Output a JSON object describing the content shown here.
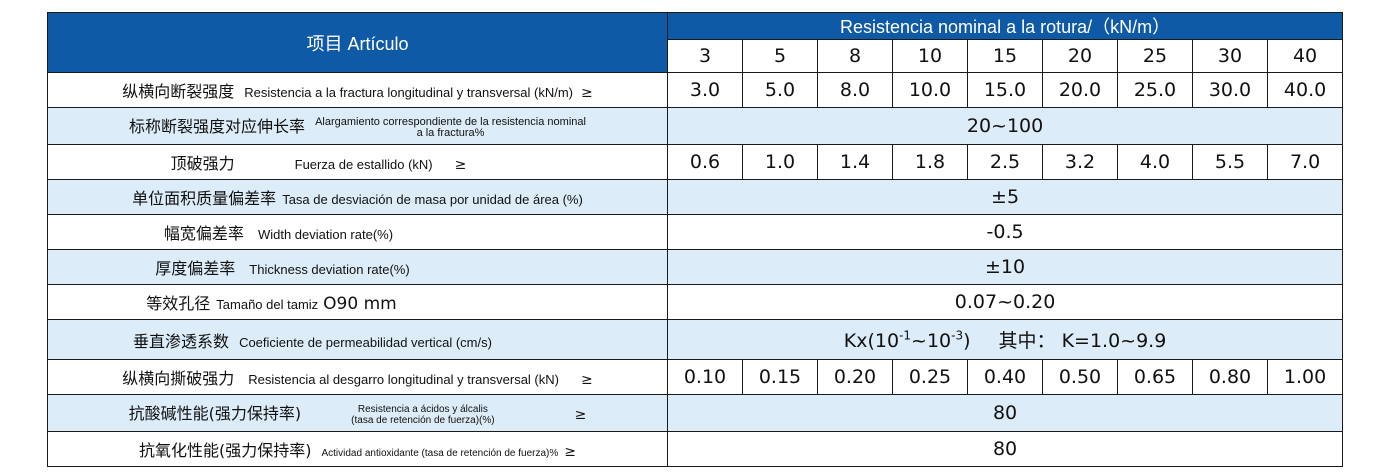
{
  "header": {
    "item_label": "项目 Artículo",
    "group_label": "Resistencia nominal a la rotura/（kN/m）",
    "columns": [
      "3",
      "5",
      "8",
      "10",
      "15",
      "20",
      "25",
      "30",
      "40"
    ]
  },
  "rows": {
    "r1": {
      "zh": "纵横向断裂强度",
      "en": "Resistencia a la fractura longitudinal y transversal (kN/m)",
      "sym": "≥",
      "values": [
        "3.0",
        "5.0",
        "8.0",
        "10.0",
        "15.0",
        "20.0",
        "25.0",
        "30.0",
        "40.0"
      ]
    },
    "r2": {
      "zh": "标称断裂强度对应伸长率",
      "en_line1": "Alargamiento correspondiente de la resistencia nominal",
      "en_line2": "a la fractura%",
      "value": "20~100"
    },
    "r3": {
      "zh": "顶破强力",
      "en": "Fuerza de estallido (kN)",
      "sym": "≥",
      "values": [
        "0.6",
        "1.0",
        "1.4",
        "1.8",
        "2.5",
        "3.2",
        "4.0",
        "5.5",
        "7.0"
      ]
    },
    "r4": {
      "zh": "单位面积质量偏差率",
      "en": "Tasa de desviación de masa por unidad de área (%)",
      "value": "±5"
    },
    "r5": {
      "zh": "幅宽偏差率",
      "en": "Width deviation rate(%)",
      "value": "-0.5"
    },
    "r6": {
      "zh": "厚度偏差率",
      "en": "Thickness deviation rate(%)",
      "value": "±10"
    },
    "r7": {
      "zh": "等效孔径",
      "en": "Tamaño del tamiz",
      "sub": "O90 mm",
      "value": "0.07~0.20"
    },
    "r8": {
      "zh": "垂直渗透系数",
      "en": "Coeficiente de permeabilidad vertical (cm/s)",
      "value_a": "Kx(10",
      "exp1": "-1",
      "value_b": "~10",
      "exp2": "-3",
      "value_c": ")",
      "value_d": "其中： K=1.0~9.9"
    },
    "r9": {
      "zh": "纵横向撕破强力",
      "en": "Resistencia al desgarro longitudinal y transversal (kN)",
      "sym": "≥",
      "values": [
        "0.10",
        "0.15",
        "0.20",
        "0.25",
        "0.40",
        "0.50",
        "0.65",
        "0.80",
        "1.00"
      ]
    },
    "r10": {
      "zh": "抗酸碱性能(强力保持率)",
      "en_line1": "Resistencia a ácidos y álcalis",
      "en_line2": "(tasa de retención de fuerza)(%)",
      "sym": "≥",
      "value": "80"
    },
    "r11": {
      "zh": "抗氧化性能(强力保持率)",
      "en": "Actividad antioxidante (tasa de retención de fuerza)%",
      "sym": "≥",
      "value": "80"
    }
  }
}
